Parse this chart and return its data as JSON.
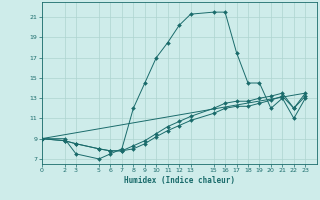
{
  "xlabel": "Humidex (Indice chaleur)",
  "bg_color": "#ceecea",
  "grid_color": "#aed4d0",
  "line_color": "#1a6b6b",
  "x_ticks": [
    0,
    2,
    3,
    5,
    6,
    7,
    8,
    9,
    10,
    11,
    12,
    13,
    15,
    16,
    17,
    18,
    19,
    20,
    21,
    22,
    23
  ],
  "y_ticks": [
    7,
    9,
    11,
    13,
    15,
    17,
    19,
    21
  ],
  "xlim": [
    0,
    24
  ],
  "ylim": [
    6.5,
    22.5
  ],
  "curve1_x": [
    0,
    2,
    3,
    5,
    6,
    7,
    8,
    9,
    10,
    11,
    12,
    13,
    15,
    16,
    17,
    18,
    19,
    20,
    21,
    22,
    23
  ],
  "curve1_y": [
    9.0,
    9.0,
    7.5,
    7.0,
    7.5,
    8.0,
    12.0,
    14.5,
    17.0,
    18.5,
    20.2,
    21.3,
    21.5,
    21.5,
    17.5,
    14.5,
    14.5,
    12.0,
    13.0,
    11.0,
    13.0
  ],
  "curve2_x": [
    0,
    2,
    3,
    5,
    6,
    7,
    8,
    9,
    10,
    11,
    12,
    13,
    15,
    16,
    17,
    18,
    19,
    20,
    21,
    22,
    23
  ],
  "curve2_y": [
    9.0,
    8.8,
    8.5,
    8.0,
    7.8,
    7.8,
    8.0,
    8.5,
    9.2,
    9.8,
    10.3,
    10.8,
    11.5,
    12.0,
    12.2,
    12.2,
    12.5,
    12.8,
    13.2,
    12.0,
    13.2
  ],
  "curve3_x": [
    0,
    2,
    3,
    5,
    6,
    7,
    8,
    9,
    10,
    11,
    12,
    13,
    15,
    16,
    17,
    18,
    19,
    20,
    21,
    22,
    23
  ],
  "curve3_y": [
    9.0,
    8.8,
    8.5,
    8.0,
    7.8,
    7.8,
    8.3,
    8.8,
    9.5,
    10.2,
    10.7,
    11.2,
    12.0,
    12.5,
    12.7,
    12.7,
    13.0,
    13.2,
    13.5,
    12.0,
    13.5
  ],
  "curve4_x": [
    0,
    23
  ],
  "curve4_y": [
    9.0,
    13.5
  ]
}
